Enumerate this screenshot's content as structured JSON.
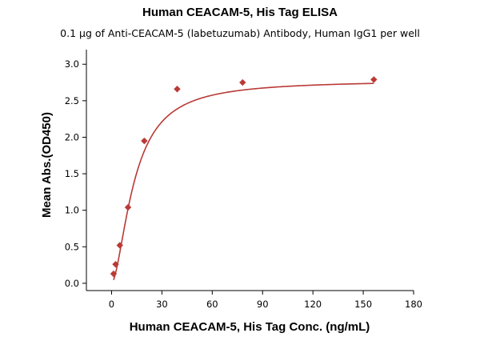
{
  "chart_data": {
    "type": "scatter",
    "title": "Human CEACAM-5, His Tag ELISA",
    "subtitle": "0.1 µg of Anti-CEACAM-5 (labetuzumab) Antibody, Human IgG1 per well",
    "xlabel": "Human CEACAM-5, His Tag Conc. (ng/mL)",
    "ylabel": "Mean Abs.(OD450)",
    "xlim": [
      -15,
      180
    ],
    "ylim": [
      -0.1,
      3.2
    ],
    "xticks": [
      0,
      30,
      60,
      90,
      120,
      150,
      180
    ],
    "yticks": [
      0.0,
      0.5,
      1.0,
      1.5,
      2.0,
      2.5,
      3.0
    ],
    "xtick_labels": [
      "0",
      "30",
      "60",
      "90",
      "120",
      "150",
      "180"
    ],
    "ytick_labels": [
      "0.0",
      "0.5",
      "1.0",
      "1.5",
      "2.0",
      "2.5",
      "3.0"
    ],
    "grid": false,
    "color": "#b93a36",
    "series": [
      {
        "x": [
          1.2,
          2.4,
          4.9,
          9.8,
          19.5,
          39.1,
          78.1,
          156.3
        ],
        "y": [
          0.13,
          0.26,
          0.52,
          1.04,
          1.95,
          2.66,
          2.75,
          2.79
        ]
      }
    ],
    "fit": {
      "model": "4PL",
      "bottom": 0.0,
      "top": 2.78,
      "ec50": 13.5,
      "hill": 1.7
    }
  }
}
